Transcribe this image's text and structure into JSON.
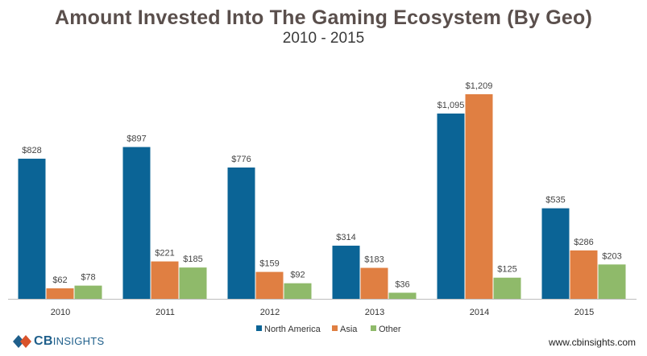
{
  "chart_data": {
    "type": "bar",
    "title": "Amount Invested Into The Gaming Ecosystem (By Geo)",
    "subtitle": "2010 - 2015",
    "categories": [
      "2010",
      "2011",
      "2012",
      "2013",
      "2014",
      "2015"
    ],
    "series": [
      {
        "name": "North America",
        "color": "#0b6496",
        "values": [
          828,
          897,
          776,
          314,
          1095,
          535
        ],
        "labels": [
          "$828",
          "$897",
          "$776",
          "$314",
          "$1,095",
          "$535"
        ]
      },
      {
        "name": "Asia",
        "color": "#e07f42",
        "values": [
          62,
          221,
          159,
          183,
          1209,
          286
        ],
        "labels": [
          "$62",
          "$221",
          "$159",
          "$183",
          "$1,209",
          "$286"
        ]
      },
      {
        "name": "Other",
        "color": "#8fba6a",
        "values": [
          78,
          185,
          92,
          36,
          125,
          203
        ],
        "labels": [
          "$78",
          "$185",
          "$92",
          "$36",
          "$125",
          "$203"
        ]
      }
    ],
    "ylim": [
      0,
      1209
    ],
    "legend": "bottom-center",
    "xlabel": "",
    "ylabel": ""
  },
  "footer": {
    "brand_prefix": "CB",
    "brand_name": "INSIGHTS",
    "website": "www.cbinsights.com"
  }
}
